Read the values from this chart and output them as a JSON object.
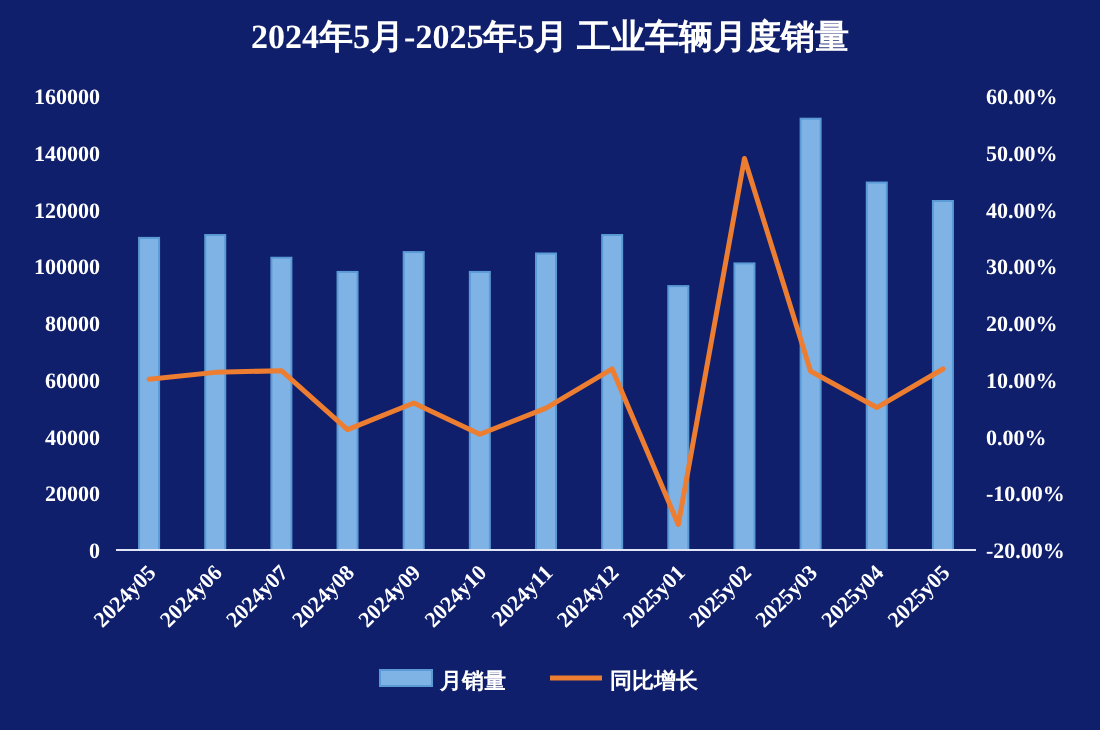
{
  "chart_data": {
    "type": "bar",
    "title": "2024年5月-2025年5月 工业车辆月度销量",
    "categories": [
      "2024y05",
      "2024y06",
      "2024y07",
      "2024y08",
      "2024y09",
      "2024y10",
      "2024y11",
      "2024y12",
      "2025y01",
      "2025y02",
      "2025y03",
      "2025y04",
      "2025y05"
    ],
    "series": [
      {
        "name": "月销量",
        "color": "#7fb3e6",
        "values": [
          110000,
          111000,
          103000,
          98000,
          105000,
          98000,
          104500,
          111000,
          93000,
          101000,
          152000,
          129500,
          123000
        ]
      },
      {
        "name": "同比增长",
        "type": "line",
        "axis": "y2",
        "color": "#ed7d31",
        "values": [
          10.1,
          11.3,
          11.6,
          1.2,
          5.9,
          0.4,
          5,
          11.9,
          -15.5,
          49,
          11.5,
          5.1,
          11.9
        ]
      }
    ],
    "ylim": [
      0,
      160000
    ],
    "yticks": [
      0,
      20000,
      40000,
      60000,
      80000,
      100000,
      120000,
      140000,
      160000
    ],
    "y2lim": [
      -20,
      60
    ],
    "y2ticks": [
      {
        "value": -20,
        "label": "-20.00%"
      },
      {
        "value": -10,
        "label": "-10.00%"
      },
      {
        "value": 0,
        "label": "0.00%"
      },
      {
        "value": 10,
        "label": "10.00%"
      },
      {
        "value": 20,
        "label": "20.00%"
      },
      {
        "value": 30,
        "label": "30.00%"
      },
      {
        "value": 40,
        "label": "40.00%"
      },
      {
        "value": 50,
        "label": "50.00%"
      },
      {
        "value": 60,
        "label": "60.00%"
      }
    ],
    "grid": false,
    "legend": "bottom",
    "marker": "none",
    "line_style": "solid"
  }
}
